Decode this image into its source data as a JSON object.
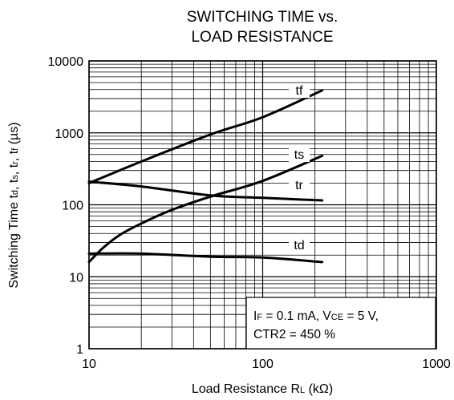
{
  "chart_data": {
    "type": "line",
    "title_line1": "SWITCHING TIME vs.",
    "title_line2": "LOAD RESISTANCE",
    "xlabel": {
      "main": "Load Resistance R",
      "sub": "L",
      "unit": " (kΩ)"
    },
    "ylabel": {
      "parts": [
        {
          "t": "Switching Time t",
          "s": false
        },
        {
          "t": "d",
          "s": true
        },
        {
          "t": ", t",
          "s": false
        },
        {
          "t": "s",
          "s": true
        },
        {
          "t": ", t",
          "s": false
        },
        {
          "t": "r",
          "s": true
        },
        {
          "t": ", t",
          "s": false
        },
        {
          "t": "f",
          "s": true
        },
        {
          "t": " (µs)",
          "s": false
        }
      ]
    },
    "x_scale": "log",
    "y_scale": "log",
    "xlim": [
      10,
      1000
    ],
    "ylim": [
      1,
      10000
    ],
    "x_ticks": [
      10,
      100,
      1000
    ],
    "x_tick_labels": [
      "10",
      "100",
      "1000"
    ],
    "y_ticks": [
      1,
      10,
      100,
      1000,
      10000
    ],
    "y_tick_labels": [
      "1",
      "10",
      "100",
      "1000",
      "10000"
    ],
    "grid": true,
    "series": [
      {
        "name": "tf",
        "x": [
          10,
          20,
          50,
          100,
          220
        ],
        "y": [
          200,
          400,
          950,
          1650,
          3900
        ]
      },
      {
        "name": "ts",
        "x": [
          10,
          20,
          50,
          100,
          220
        ],
        "y": [
          210,
          180,
          135,
          125,
          115
        ]
      },
      {
        "name": "tr",
        "x": [
          10,
          12,
          15,
          20,
          30,
          50,
          100,
          220
        ],
        "y": [
          16,
          25,
          38,
          55,
          85,
          130,
          215,
          480
        ]
      },
      {
        "name": "td",
        "x": [
          10,
          20,
          50,
          100,
          220
        ],
        "y": [
          21,
          21,
          19,
          18.5,
          16
        ]
      }
    ],
    "conditions": {
      "line1": [
        {
          "t": "I",
          "s": false
        },
        {
          "t": "F",
          "s": true
        },
        {
          "t": " = 0.1 mA, V",
          "s": false
        },
        {
          "t": "CE",
          "s": true
        },
        {
          "t": " = 5 V,",
          "s": false
        }
      ],
      "line2": "CTR2 = 450 %"
    }
  }
}
